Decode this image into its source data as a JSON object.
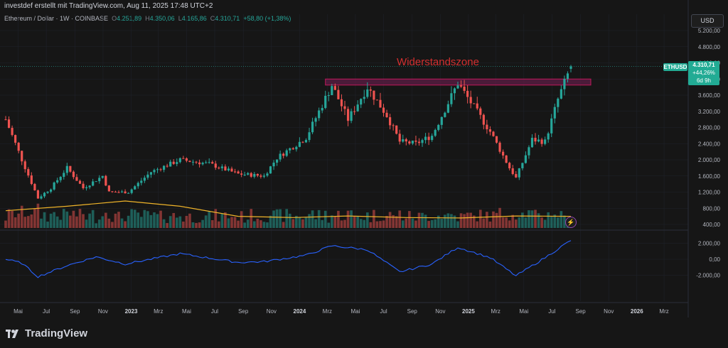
{
  "header": {
    "credit": "investdef erstellt mit TradingView.com, Aug 11, 2025 17:48 UTC+2",
    "symbol": "Ethereum / Dollar · 1W · COINBASE",
    "o_label": "O",
    "o": "4.251,89",
    "h_label": "H",
    "h": "4.350,06",
    "l_label": "L",
    "l": "4.165,86",
    "c_label": "C",
    "c": "4.310,71",
    "change": "+58,80 (+1,38%)"
  },
  "currency_button": "USD",
  "price_badge": {
    "ticker": "ETHUSD",
    "price": "4.310,71",
    "change": "+44,26%",
    "countdown": "6d 9h"
  },
  "annotation": "Widerstandszone",
  "brand": "TradingView",
  "colors": {
    "up": "#26a69a",
    "down": "#ef5350",
    "ma": "#f0b429",
    "oscillator": "#2962ff",
    "zone_fill": "#5e1e46",
    "zone_border": "#c2185b",
    "annotation": "#d32f2f"
  },
  "chart_data": [
    {
      "type": "candlestick",
      "title": "Ethereum / Dollar · 1W · COINBASE",
      "x_tick_labels": [
        "Mai",
        "Jul",
        "Sep",
        "Nov",
        "2023",
        "Mrz",
        "Mai",
        "Jul",
        "Sep",
        "Nov",
        "2024",
        "Mrz",
        "Mai",
        "Jul",
        "Sep",
        "Nov",
        "2025",
        "Mrz",
        "Mai",
        "Jul",
        "Sep",
        "Nov",
        "2026",
        "Mrz"
      ],
      "y_tick_labels": [
        "5.200,00",
        "4.800,00",
        "4.400,00",
        "4.000,00",
        "3.600,00",
        "3.200,00",
        "2.800,00",
        "2.400,00",
        "2.000,00",
        "1.600,00",
        "1.200,00",
        "800,00",
        "400,00"
      ],
      "ylim": [
        400,
        5200
      ],
      "grid": true,
      "resistance_zone": [
        3850,
        4000
      ],
      "close_path": [
        {
          "x": "2022-04-04",
          "y": 3000
        },
        {
          "x": "2022-05-09",
          "y": 2000
        },
        {
          "x": "2022-06-13",
          "y": 1050
        },
        {
          "x": "2022-07-11",
          "y": 1300
        },
        {
          "x": "2022-08-15",
          "y": 1800
        },
        {
          "x": "2022-09-19",
          "y": 1300
        },
        {
          "x": "2022-10-31",
          "y": 1600
        },
        {
          "x": "2022-11-14",
          "y": 1200
        },
        {
          "x": "2022-12-26",
          "y": 1200
        },
        {
          "x": "2023-02-13",
          "y": 1700
        },
        {
          "x": "2023-04-17",
          "y": 2000
        },
        {
          "x": "2023-06-19",
          "y": 1900
        },
        {
          "x": "2023-08-21",
          "y": 1650
        },
        {
          "x": "2023-10-16",
          "y": 1600
        },
        {
          "x": "2023-11-13",
          "y": 2050
        },
        {
          "x": "2024-01-15",
          "y": 2550
        },
        {
          "x": "2024-03-11",
          "y": 3850
        },
        {
          "x": "2024-04-15",
          "y": 3000
        },
        {
          "x": "2024-05-27",
          "y": 3800
        },
        {
          "x": "2024-07-08",
          "y": 3100
        },
        {
          "x": "2024-08-05",
          "y": 2450
        },
        {
          "x": "2024-09-09",
          "y": 2400
        },
        {
          "x": "2024-10-14",
          "y": 2600
        },
        {
          "x": "2024-12-09",
          "y": 3900
        },
        {
          "x": "2025-01-13",
          "y": 3300
        },
        {
          "x": "2025-02-17",
          "y": 2700
        },
        {
          "x": "2025-03-31",
          "y": 1800
        },
        {
          "x": "2025-04-14",
          "y": 1550
        },
        {
          "x": "2025-05-19",
          "y": 2500
        },
        {
          "x": "2025-06-16",
          "y": 2450
        },
        {
          "x": "2025-07-14",
          "y": 3500
        },
        {
          "x": "2025-08-11",
          "y": 4310.71
        }
      ],
      "moving_average": [
        {
          "x": "2022-04-04",
          "y": 740
        },
        {
          "x": "2022-08-15",
          "y": 850
        },
        {
          "x": "2022-12-19",
          "y": 980
        },
        {
          "x": "2023-04-17",
          "y": 850
        },
        {
          "x": "2023-08-21",
          "y": 600
        },
        {
          "x": "2023-12-18",
          "y": 570
        },
        {
          "x": "2024-04-15",
          "y": 610
        },
        {
          "x": "2024-08-19",
          "y": 570
        },
        {
          "x": "2024-12-16",
          "y": 560
        },
        {
          "x": "2025-04-14",
          "y": 610
        },
        {
          "x": "2025-08-11",
          "y": 600
        }
      ]
    },
    {
      "type": "line",
      "y_tick_labels": [
        "2.000,00",
        "0,00",
        "-2.000,00"
      ],
      "ylim": [
        -2600,
        2600
      ],
      "values": [
        {
          "x": "2022-04-04",
          "y": 0
        },
        {
          "x": "2022-05-09",
          "y": -500
        },
        {
          "x": "2022-06-13",
          "y": -2200
        },
        {
          "x": "2022-08-15",
          "y": -800
        },
        {
          "x": "2022-10-17",
          "y": 300
        },
        {
          "x": "2022-12-19",
          "y": -600
        },
        {
          "x": "2023-04-17",
          "y": 700
        },
        {
          "x": "2023-08-21",
          "y": -400
        },
        {
          "x": "2023-10-16",
          "y": -300
        },
        {
          "x": "2024-01-15",
          "y": 500
        },
        {
          "x": "2024-03-11",
          "y": 1700
        },
        {
          "x": "2024-05-27",
          "y": 1200
        },
        {
          "x": "2024-08-05",
          "y": -1600
        },
        {
          "x": "2024-10-14",
          "y": -600
        },
        {
          "x": "2024-12-09",
          "y": 1500
        },
        {
          "x": "2025-02-17",
          "y": 200
        },
        {
          "x": "2025-04-14",
          "y": -2100
        },
        {
          "x": "2025-06-16",
          "y": 200
        },
        {
          "x": "2025-08-11",
          "y": 2400
        }
      ]
    }
  ]
}
